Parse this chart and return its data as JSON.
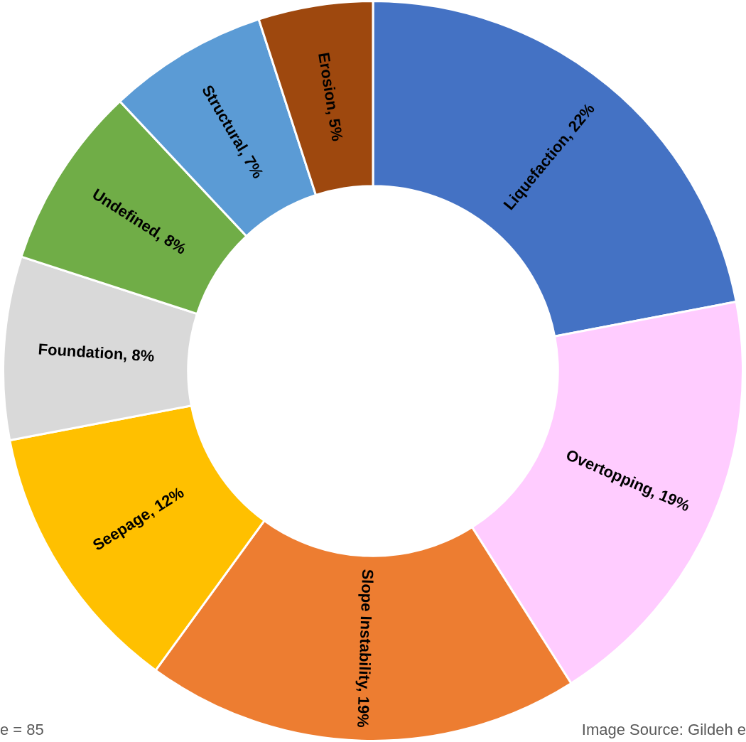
{
  "chart_data": {
    "type": "donut",
    "categories": [
      "Liquefaction",
      "Overtopping",
      "Slope Instability",
      "Seepage",
      "Foundation",
      "Undefined",
      "Structural",
      "Erosion"
    ],
    "values": [
      22,
      19,
      19,
      12,
      8,
      8,
      7,
      5
    ],
    "value_labels": [
      "22%",
      "19%",
      "19%",
      "12%",
      "8%",
      "8%",
      "7%",
      "5%"
    ],
    "colors": [
      "#4472c4",
      "#ffccff",
      "#ed7d31",
      "#ffc000",
      "#d9d9d9",
      "#70ad47",
      "#5b9bd5",
      "#9e480e"
    ],
    "legend": false,
    "annotations": [
      "e = 85",
      "Image Source: Gildeh e"
    ]
  }
}
